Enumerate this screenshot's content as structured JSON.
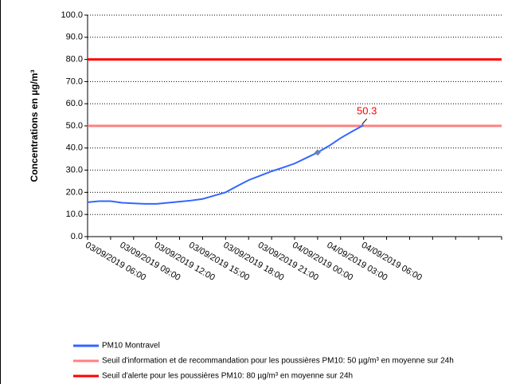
{
  "chart_data": {
    "type": "line",
    "ylabel": "Concentrations en µg/m³",
    "ylim": [
      0,
      100
    ],
    "yticks": [
      {
        "value": 0,
        "label": "0.0"
      },
      {
        "value": 10,
        "label": "10.0"
      },
      {
        "value": 20,
        "label": "20.0"
      },
      {
        "value": 30,
        "label": "30.0"
      },
      {
        "value": 40,
        "label": "40.0"
      },
      {
        "value": 50,
        "label": "50.0"
      },
      {
        "value": 60,
        "label": "60.0"
      },
      {
        "value": 70,
        "label": "70.0"
      },
      {
        "value": 80,
        "label": "80.0"
      },
      {
        "value": 90,
        "label": "90.0"
      },
      {
        "value": 100,
        "label": "100.0"
      }
    ],
    "grid": true,
    "categories": [
      "03/09/2019 06:00",
      null,
      null,
      "03/09/2019 09:00",
      null,
      null,
      "03/09/2019 12:00",
      null,
      null,
      "03/09/2019 15:00",
      null,
      null,
      "03/09/2019 18:00",
      null,
      null,
      "03/09/2019 21:00",
      null,
      null,
      "04/09/2019 00:00",
      null,
      null,
      "04/09/2019 03:00",
      null,
      null,
      "04/09/2019 06:00",
      null,
      null,
      null,
      null,
      null,
      null,
      null,
      null,
      null,
      null,
      null,
      null
    ],
    "series": [
      {
        "name": "PM10 Montravel",
        "color": "#3366ff",
        "values": [
          15.5,
          16,
          16,
          15.3,
          15,
          14.8,
          14.8,
          15.3,
          15.8,
          16.3,
          17,
          18.5,
          20,
          22.8,
          25.5,
          27.5,
          29.5,
          31.2,
          33,
          35.5,
          38,
          41,
          44.5,
          47.5,
          50.3,
          null,
          null,
          null,
          null,
          null,
          null,
          null,
          null,
          null,
          null,
          null,
          null
        ]
      }
    ],
    "thresholds": [
      {
        "name": "Seuil d'information et de recommandation pour les poussières PM10: 50 µg/m³ en moyenne sur 24h",
        "value": 50,
        "color": "#ff8080"
      },
      {
        "name": "Seuil d'alerte pour les poussières PM10: 80 µg/m³ en moyenne sur 24h",
        "value": 80,
        "color": "#ff0000"
      }
    ],
    "annotation": {
      "text": "50.3",
      "color": "#ff0000"
    }
  }
}
